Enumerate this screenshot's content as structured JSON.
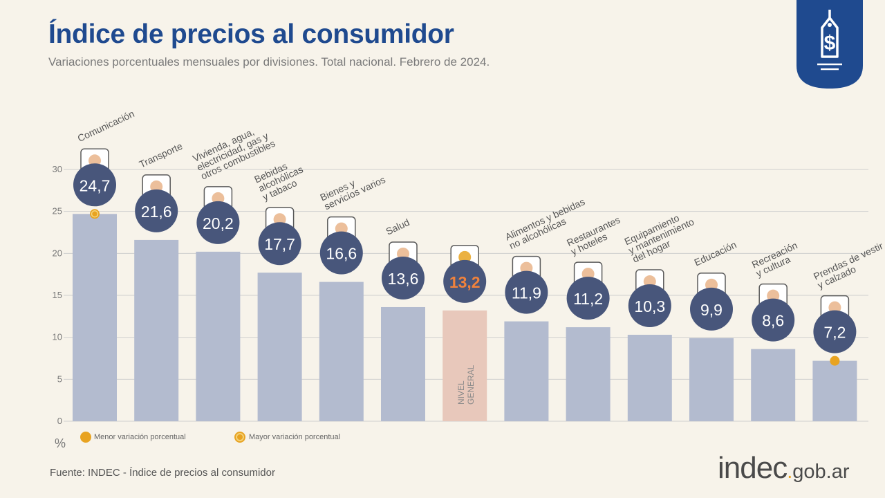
{
  "header": {
    "title": "Índice de precios al consumidor",
    "subtitle": "Variaciones porcentuales mensuales por divisiones. Total nacional. Febrero de 2024."
  },
  "footer": {
    "source": "Fuente: INDEC - Índice de precios al consumidor",
    "logo_main": "indec",
    "logo_suffix": "gob.ar"
  },
  "legend": {
    "min_label": "Menor variación porcentual",
    "max_label": "Mayor variación porcentual"
  },
  "colors": {
    "bar": "#b3bbcf",
    "bar_highlight": "#e8c8bb",
    "circle": "#48567b",
    "accent": "#e8a321",
    "highlight_text": "#f0823c",
    "title": "#1f4a8f"
  },
  "chart_data": {
    "type": "bar",
    "categories": [
      "Comunicación",
      "Transporte",
      "Vivienda, agua, electricidad, gas y otros combustibles",
      "Bebidas alcohólicas y tabaco",
      "Bienes y servicios varios",
      "Salud",
      "NIVEL GENERAL",
      "Alimentos y bebidas no alcohólicas",
      "Restaurantes y hoteles",
      "Equipamiento y mantenimiento del hogar",
      "Educación",
      "Recreación y cultura",
      "Prendas de vestir y calzado"
    ],
    "category_lines": [
      [
        "Comunicación"
      ],
      [
        "Transporte"
      ],
      [
        "Vivienda, agua,",
        "electricidad, gas y",
        "otros combustibles"
      ],
      [
        "Bebidas",
        "alcohólicas",
        "y tabaco"
      ],
      [
        "Bienes y",
        "servicios varios"
      ],
      [
        "Salud"
      ],
      [],
      [
        "Alimentos y bebidas",
        "no alcohólicas"
      ],
      [
        "Restaurantes",
        "y hoteles"
      ],
      [
        "Equipamiento",
        "y mantenimiento",
        "del hogar"
      ],
      [
        "Educación"
      ],
      [
        "Recreación",
        "y cultura"
      ],
      [
        "Prendas de vestir",
        "y calzado"
      ]
    ],
    "values": [
      24.7,
      21.6,
      20.2,
      17.7,
      16.6,
      13.6,
      13.2,
      11.9,
      11.2,
      10.3,
      9.9,
      8.6,
      7.2
    ],
    "value_labels": [
      "24,7",
      "21,6",
      "20,2",
      "17,7",
      "16,6",
      "13,6",
      "13,2",
      "11,9",
      "11,2",
      "10,3",
      "9,9",
      "8,6",
      "7,2"
    ],
    "highlight_index": 6,
    "highlight_lines": [
      "NIVEL",
      "GENERAL"
    ],
    "max_marker_index": 0,
    "min_marker_index": 12,
    "ylim": [
      0,
      30
    ],
    "yticks": [
      0,
      5,
      10,
      15,
      20,
      25,
      30
    ],
    "ylabel": "%",
    "grid": true
  }
}
